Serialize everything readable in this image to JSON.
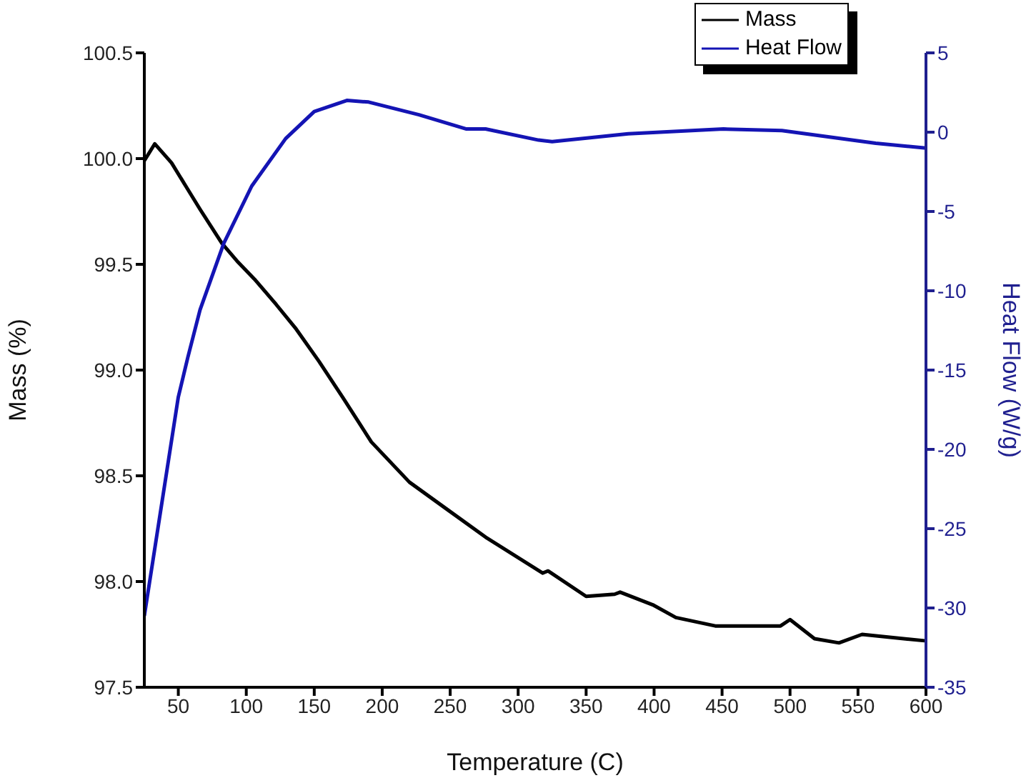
{
  "chart_data": {
    "type": "line",
    "xlabel": "Temperature (C)",
    "ylabel": "Mass (%)",
    "y2label": "Heat Flow (W/g)",
    "xlim": [
      25,
      600
    ],
    "xticks": [
      50,
      100,
      150,
      200,
      250,
      300,
      350,
      400,
      450,
      500,
      550,
      600
    ],
    "ylim": [
      97.5,
      100.5
    ],
    "yticks": [
      {
        "value": 97.5,
        "label": "97.5"
      },
      {
        "value": 98,
        "label": "98.0"
      },
      {
        "value": 98.5,
        "label": "98.5"
      },
      {
        "value": 99,
        "label": "99.0"
      },
      {
        "value": 99.5,
        "label": "99.5"
      },
      {
        "value": 100,
        "label": "100.0"
      },
      {
        "value": 100.5,
        "label": "100.5"
      }
    ],
    "y2lim": [
      -35,
      5
    ],
    "y2ticks": [
      -35,
      -30,
      -25,
      -20,
      -15,
      -10,
      -5,
      0,
      5
    ],
    "legend": "top right",
    "grid": false,
    "marker": "none",
    "line_style": "solid",
    "series": [
      {
        "name": "Mass",
        "color": "#000000",
        "x": [
          25,
          32.7,
          45,
          55.5,
          66,
          82,
          94,
          106,
          122,
          136,
          153.6,
          171,
          192,
          220,
          248,
          276,
          318,
          322,
          350,
          371,
          375,
          399,
          416,
          445,
          493,
          500,
          518,
          536,
          553,
          599
        ],
        "values": [
          99.99,
          100.07,
          99.98,
          99.87,
          99.76,
          99.6,
          99.51,
          99.43,
          99.31,
          99.2,
          99.04,
          98.87,
          98.66,
          98.47,
          98.34,
          98.21,
          98.04,
          98.05,
          97.93,
          97.94,
          97.95,
          97.89,
          97.83,
          97.79,
          97.79,
          97.82,
          97.73,
          97.71,
          97.75,
          97.72
        ]
      },
      {
        "name": "Heat Flow",
        "color": "#1414b4",
        "axis": "y2",
        "x": [
          25,
          50,
          57,
          66,
          83.5,
          104,
          129,
          150,
          174,
          190,
          227,
          262,
          276,
          315,
          325,
          381,
          451,
          494,
          563,
          600
        ],
        "values": [
          -30.5,
          -16.7,
          -14.2,
          -11.2,
          -7,
          -3.4,
          -0.4,
          1.3,
          2,
          1.9,
          1.1,
          0.2,
          0.2,
          -0.5,
          -0.6,
          -0.1,
          0.2,
          0.1,
          -0.7,
          -1
        ]
      }
    ]
  }
}
